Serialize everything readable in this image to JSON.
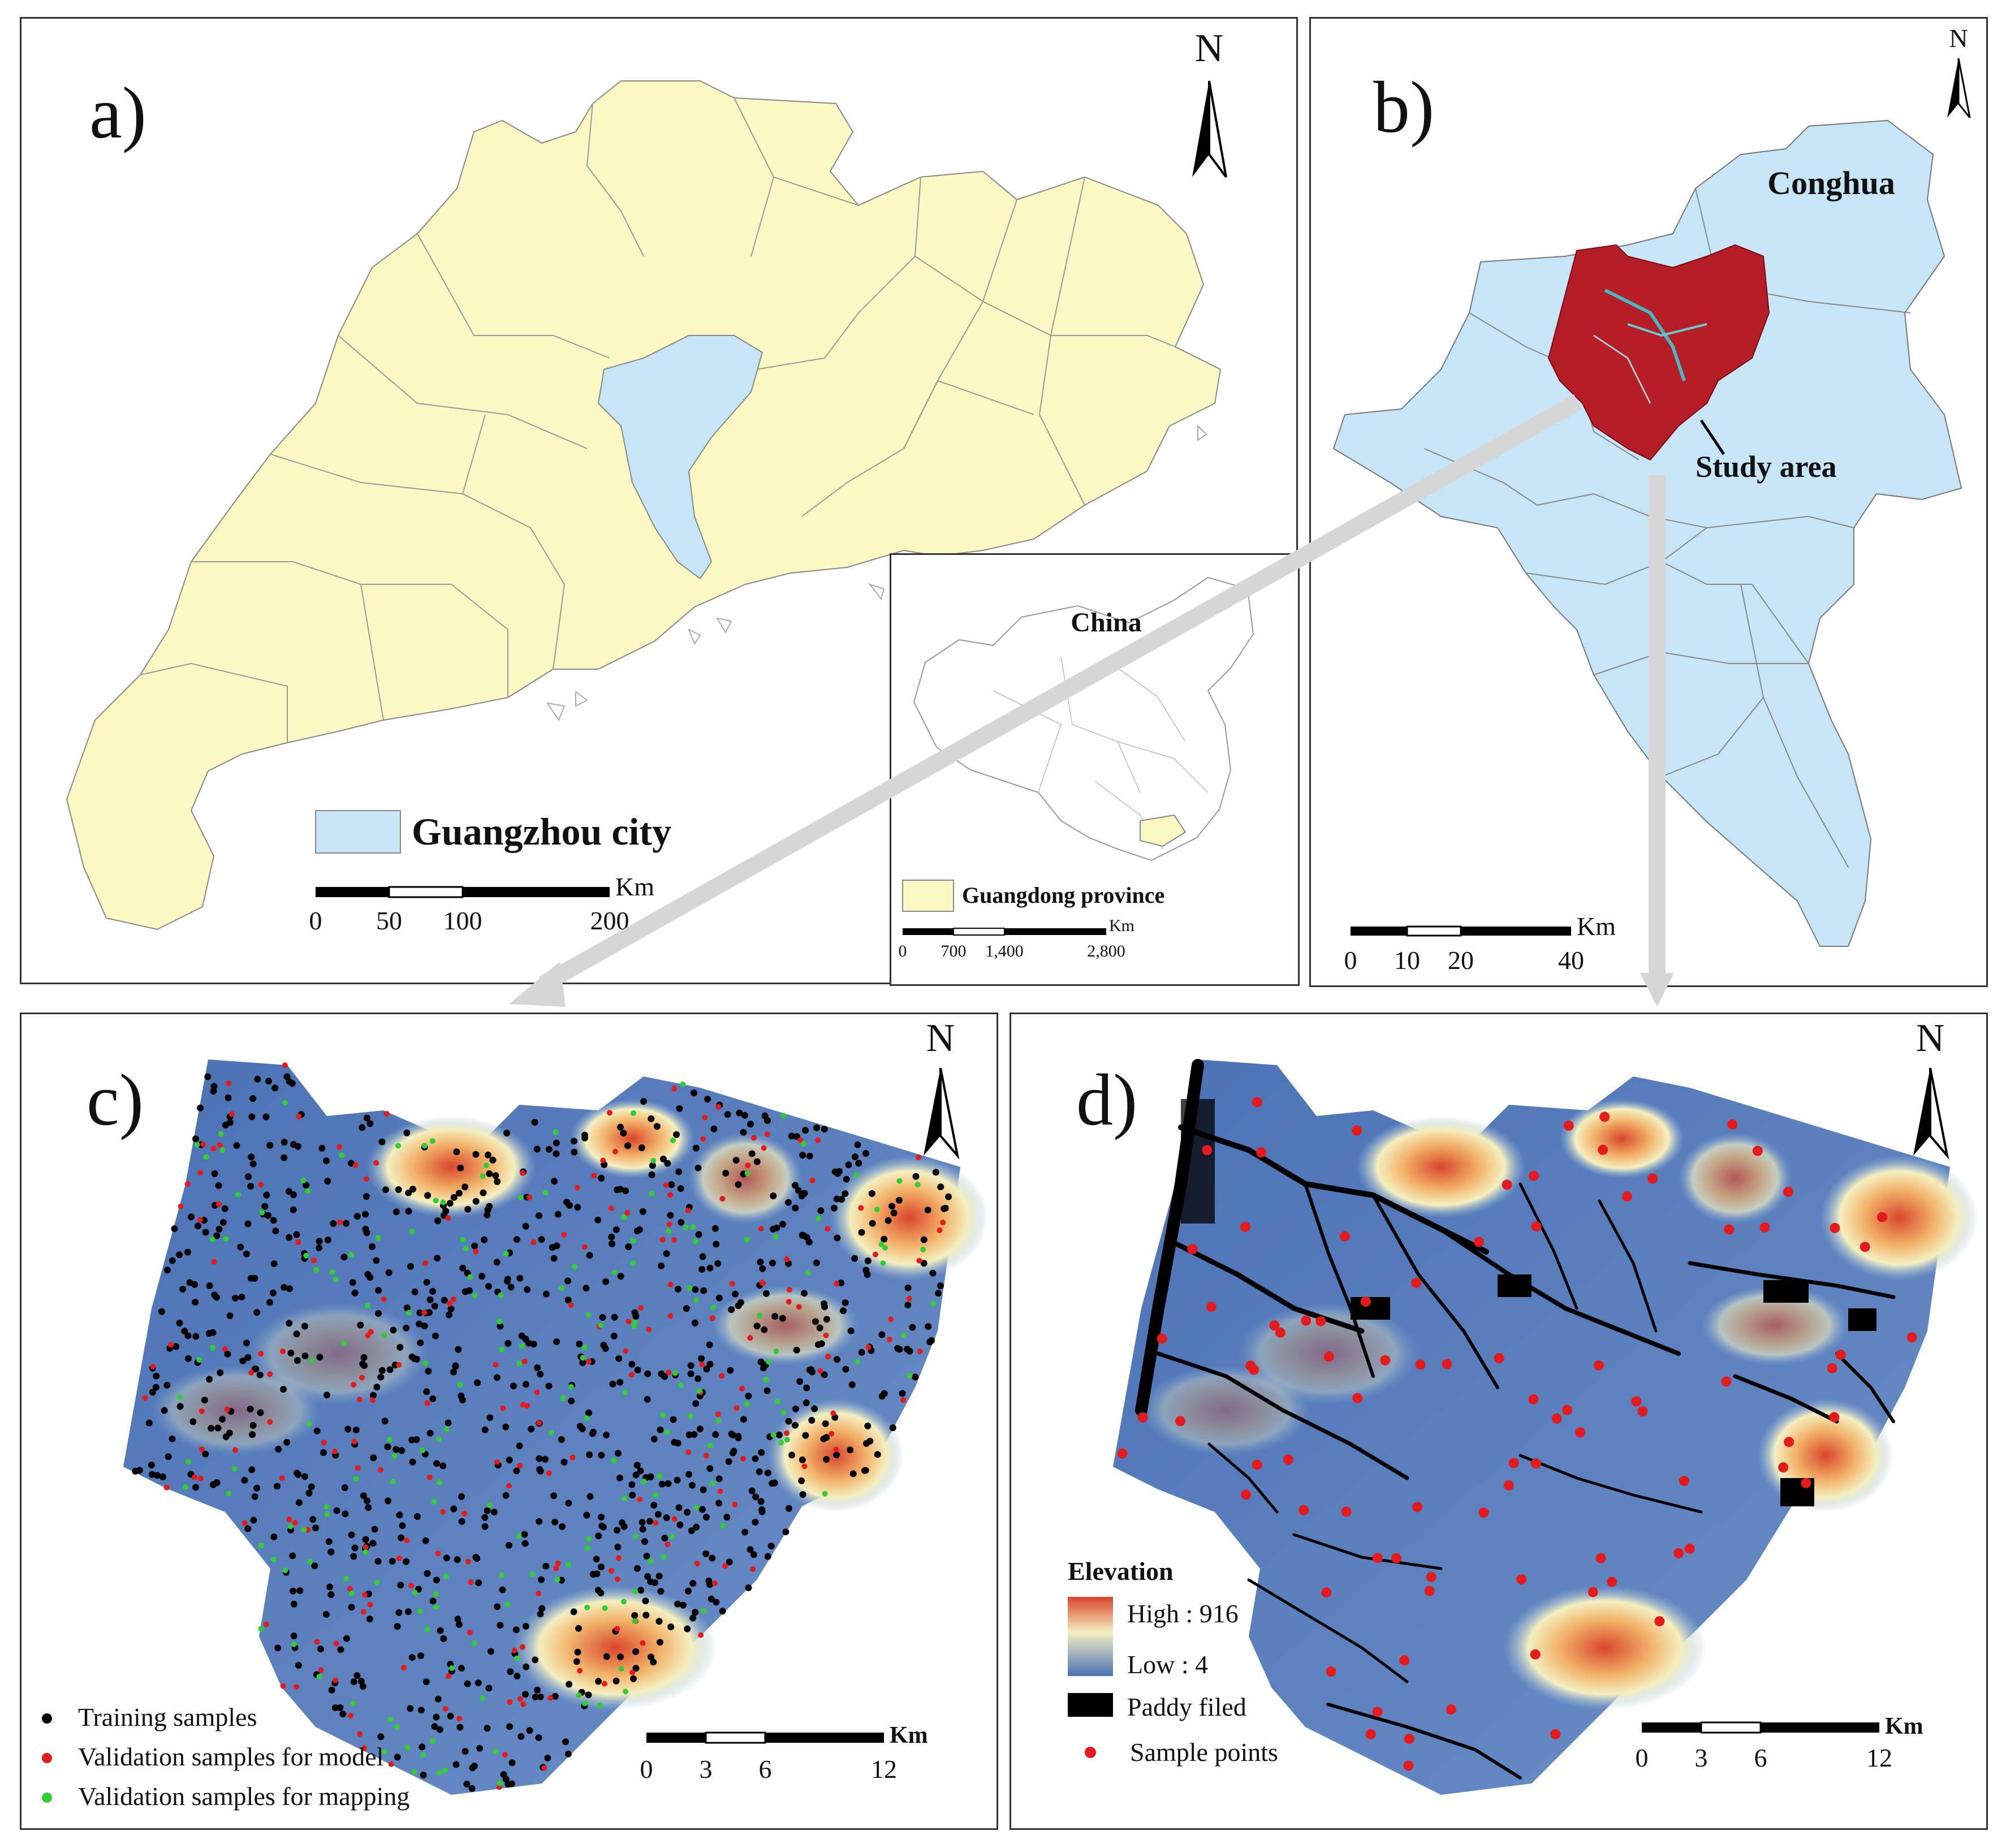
{
  "panel_a": {
    "label": "a)",
    "north": "N",
    "legend_label": "Guangzhou  city",
    "scale_ticks": [
      "0",
      "50",
      "100",
      "200"
    ],
    "scale_unit": "Km",
    "inset": {
      "country_label": "China",
      "legend_label": "Guangdong  province",
      "scale_ticks": [
        "0",
        "700",
        "1,400",
        "2,800"
      ],
      "scale_unit": "Km"
    }
  },
  "panel_b": {
    "label": "b)",
    "north": "N",
    "district_label": "Conghua",
    "study_area_label": "Study area",
    "scale_ticks": [
      "0",
      "10",
      "20",
      "40"
    ],
    "scale_unit": "Km"
  },
  "panel_c": {
    "label": "c)",
    "north": "N",
    "legend": [
      {
        "label": "Training samples",
        "color": "#000000"
      },
      {
        "label": "Validation samples  for model",
        "color": "#e41a1c"
      },
      {
        "label": "Validation samples  for mapping",
        "color": "#33cc33"
      }
    ],
    "scale_ticks": [
      "0",
      "3",
      "6",
      "12"
    ],
    "scale_unit": "Km"
  },
  "panel_d": {
    "label": "d)",
    "north": "N",
    "legend_title": "Elevation",
    "high_label": "High : 916",
    "low_label": "Low : 4",
    "paddy_label": "Paddy filed",
    "sample_label": "Sample points",
    "scale_ticks": [
      "0",
      "3",
      "6",
      "12"
    ],
    "scale_unit": "Km"
  },
  "colors": {
    "province_fill": "#fbf8c4",
    "guangzhou_fill": "#c6e6f8",
    "training": "#000000",
    "validation_model": "#e41a1c",
    "validation_mapping": "#33cc33",
    "elevation_low": "#4b72b5",
    "elevation_high": "#d9462c"
  }
}
